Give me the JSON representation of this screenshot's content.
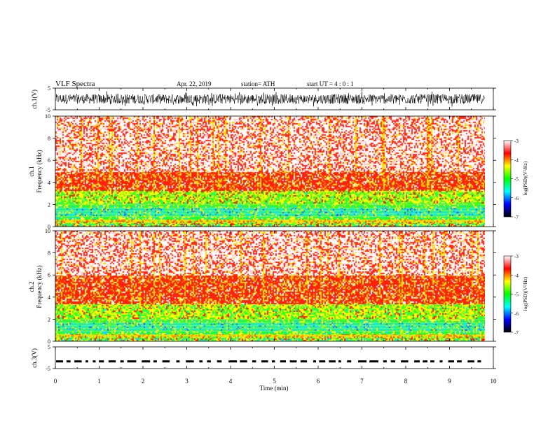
{
  "header": {
    "title": "VLF  Spectra",
    "date": "Apr. 22, 2019",
    "station": "station= ATH",
    "start": "start  UT  =   4  : 0   : 1"
  },
  "axes": {
    "ch1_label": "ch.1(V)",
    "ch3_label": "ch.3(V)",
    "spec1_label_a": "ch.1",
    "spec1_label_b": "Frequency  (kHz)",
    "spec2_label_a": "ch.2",
    "spec2_label_b": "Frequency  (kHz)",
    "xlabel": "Time  (min)",
    "colorbar_label": "log(PSD)(V²/Hz)"
  },
  "chart_data": [
    {
      "type": "line",
      "name": "ch1-waveform",
      "ylabel": "ch.1(V)",
      "ylim": [
        -5,
        5
      ],
      "yticks": [
        -5,
        5
      ],
      "xlim": [
        0,
        10
      ],
      "x_extent_min": 9.8,
      "noise_amplitude_v": [
        -3,
        3
      ]
    },
    {
      "type": "heatmap",
      "name": "ch1-spectrogram",
      "ylabel": "Frequency  (kHz)",
      "ylim": [
        0,
        10
      ],
      "yticks": [
        0,
        2,
        4,
        6,
        8,
        10
      ],
      "xlim": [
        0,
        10
      ],
      "x_extent_min": 9.8,
      "bands_khz": [
        {
          "from": 0,
          "to": 0.4,
          "level": "green-red"
        },
        {
          "from": 0.4,
          "to": 0.7,
          "level": "yellow"
        },
        {
          "from": 0.7,
          "to": 1.0,
          "level": "green"
        },
        {
          "from": 1.0,
          "to": 1.7,
          "level": "cyan-green"
        },
        {
          "from": 1.7,
          "to": 2.1,
          "level": "green"
        },
        {
          "from": 2.1,
          "to": 3.2,
          "level": "yellow-green"
        },
        {
          "from": 3.2,
          "to": 5.0,
          "level": "red"
        },
        {
          "from": 5.0,
          "to": 10.0,
          "level": "red-white"
        }
      ]
    },
    {
      "type": "heatmap",
      "name": "ch2-spectrogram",
      "ylabel": "Frequency  (kHz)",
      "ylim": [
        0,
        10
      ],
      "yticks": [
        0,
        2,
        4,
        6,
        8,
        10
      ],
      "xlim": [
        0,
        10
      ],
      "x_extent_min": 9.8,
      "bands_khz": [
        {
          "from": 0,
          "to": 0.4,
          "level": "green-red"
        },
        {
          "from": 0.4,
          "to": 0.7,
          "level": "yellow"
        },
        {
          "from": 0.7,
          "to": 1.0,
          "level": "green"
        },
        {
          "from": 1.0,
          "to": 1.7,
          "level": "cyan-green"
        },
        {
          "from": 1.7,
          "to": 2.1,
          "level": "green"
        },
        {
          "from": 2.1,
          "to": 3.4,
          "level": "yellow-green"
        },
        {
          "from": 3.4,
          "to": 6.0,
          "level": "red"
        },
        {
          "from": 6.0,
          "to": 10.0,
          "level": "red-white"
        }
      ]
    },
    {
      "type": "line",
      "name": "ch3-waveform",
      "ylabel": "ch.3(V)",
      "ylim": [
        -5,
        5
      ],
      "yticks": [
        -5,
        5
      ],
      "xlim": [
        0,
        10
      ],
      "x_extent_min": 9.8,
      "level_v": -1.7
    }
  ],
  "x_axis": {
    "ticks": [
      0,
      1,
      2,
      3,
      4,
      5,
      6,
      7,
      8,
      9,
      10
    ]
  },
  "colorbar": {
    "ticks": [
      -3,
      -4,
      -5,
      -6,
      -7
    ],
    "range": [
      -7,
      -3
    ],
    "stops": [
      "#000000",
      "#0000ff",
      "#00ffff",
      "#00ff00",
      "#ffff00",
      "#ff0000",
      "#ffffff"
    ]
  }
}
